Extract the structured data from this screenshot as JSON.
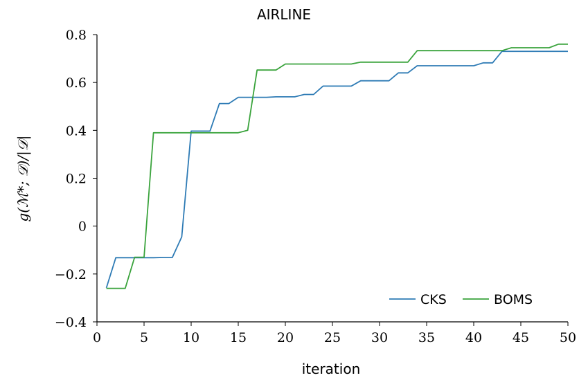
{
  "chart_data": {
    "type": "line",
    "title": "AIRLINE",
    "xlabel": "iteration",
    "ylabel": "g(ℳ*; 𝒟)/|𝒟|",
    "xlim": [
      0,
      50
    ],
    "ylim": [
      -0.4,
      0.8
    ],
    "xticks": [
      0,
      5,
      10,
      15,
      20,
      25,
      30,
      35,
      40,
      45,
      50
    ],
    "xtick_labels": [
      "0",
      "5",
      "10",
      "15",
      "20",
      "25",
      "30",
      "35",
      "40",
      "45",
      "50"
    ],
    "yticks": [
      -0.4,
      -0.2,
      0,
      0.2,
      0.4,
      0.6,
      0.8
    ],
    "ytick_labels": [
      "−0.4",
      "−0.2",
      "0",
      "0.2",
      "0.4",
      "0.6",
      "0.8"
    ],
    "grid": false,
    "legend_position": "bottom-right",
    "x": [
      1,
      2,
      3,
      4,
      5,
      6,
      7,
      8,
      9,
      10,
      11,
      12,
      13,
      14,
      15,
      16,
      17,
      18,
      19,
      20,
      21,
      22,
      23,
      24,
      25,
      26,
      27,
      28,
      29,
      30,
      31,
      32,
      33,
      34,
      35,
      36,
      37,
      38,
      39,
      40,
      41,
      42,
      43,
      44,
      45,
      46,
      47,
      48,
      49,
      50
    ],
    "series": [
      {
        "name": "CKS",
        "color": "#2e7bb5",
        "values": [
          -0.258,
          -0.132,
          -0.132,
          -0.132,
          -0.132,
          -0.132,
          -0.131,
          -0.131,
          -0.045,
          0.397,
          0.397,
          0.397,
          0.512,
          0.512,
          0.538,
          0.538,
          0.538,
          0.538,
          0.54,
          0.54,
          0.54,
          0.55,
          0.55,
          0.585,
          0.585,
          0.585,
          0.585,
          0.607,
          0.607,
          0.607,
          0.607,
          0.64,
          0.64,
          0.67,
          0.67,
          0.67,
          0.67,
          0.67,
          0.67,
          0.67,
          0.682,
          0.682,
          0.73,
          0.73,
          0.73,
          0.73,
          0.73,
          0.73,
          0.73,
          0.73
        ]
      },
      {
        "name": "BOMS",
        "color": "#3aa33c",
        "values": [
          -0.26,
          -0.26,
          -0.26,
          -0.13,
          -0.13,
          0.39,
          0.39,
          0.39,
          0.39,
          0.39,
          0.39,
          0.39,
          0.39,
          0.39,
          0.39,
          0.4,
          0.652,
          0.652,
          0.652,
          0.677,
          0.677,
          0.677,
          0.677,
          0.677,
          0.677,
          0.677,
          0.677,
          0.685,
          0.685,
          0.685,
          0.685,
          0.685,
          0.685,
          0.733,
          0.733,
          0.733,
          0.733,
          0.733,
          0.733,
          0.733,
          0.733,
          0.733,
          0.733,
          0.745,
          0.745,
          0.745,
          0.745,
          0.745,
          0.76,
          0.76
        ]
      }
    ]
  }
}
